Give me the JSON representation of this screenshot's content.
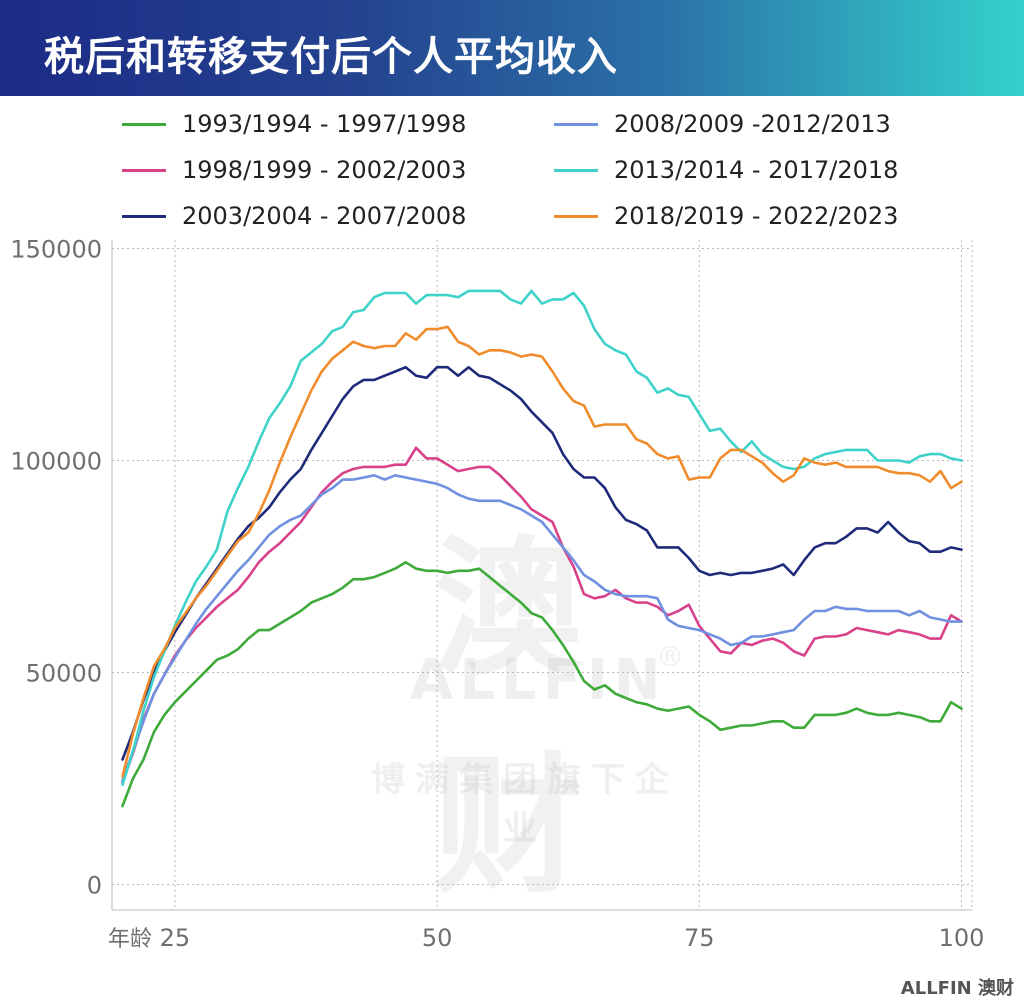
{
  "header": {
    "title": "税后和转移支付后个人平均收入"
  },
  "watermark": {
    "logo": "澳财",
    "brand": "ALLFIN",
    "registered": "®",
    "subtitle": "博满集团旗下企业"
  },
  "footer": {
    "logo": "ALLFIN 澳财"
  },
  "colors": {
    "banner_start": "#1c2b86",
    "banner_end": "#33d2cc",
    "grid": "#b8b8b8",
    "axis_text": "#6f6f6f"
  },
  "chart_data": {
    "type": "line",
    "title": "税后和转移支付后个人平均收入",
    "xlabel": "年龄",
    "ylabel": "",
    "xlim": [
      19,
      101
    ],
    "ylim": [
      -6000,
      152000
    ],
    "xticks": [
      25,
      50,
      75,
      100
    ],
    "yticks": [
      0,
      50000,
      100000,
      150000
    ],
    "x_tick_labels": [
      "25",
      "50",
      "75",
      "100"
    ],
    "y_tick_labels": [
      "0",
      "50000",
      "100000",
      "150000"
    ],
    "grid": true,
    "legend_position": "top",
    "x": [
      20,
      21,
      22,
      23,
      24,
      25,
      26,
      27,
      28,
      29,
      30,
      31,
      32,
      33,
      34,
      35,
      36,
      37,
      38,
      39,
      40,
      41,
      42,
      43,
      44,
      45,
      46,
      47,
      48,
      49,
      50,
      51,
      52,
      53,
      54,
      55,
      56,
      57,
      58,
      59,
      60,
      61,
      62,
      63,
      64,
      65,
      66,
      67,
      68,
      69,
      70,
      71,
      72,
      73,
      74,
      75,
      76,
      77,
      78,
      79,
      80,
      81,
      82,
      83,
      84,
      85,
      86,
      87,
      88,
      89,
      90,
      91,
      92,
      93,
      94,
      95,
      96,
      97,
      98,
      99,
      100
    ],
    "series": [
      {
        "name": "1993/1994 - 1997/1998",
        "color": "#3daa3a",
        "values": [
          18500,
          25000,
          29500,
          36000,
          40000,
          43000,
          45500,
          48000,
          50500,
          53000,
          54000,
          55500,
          58000,
          60000,
          60000,
          61500,
          63000,
          64500,
          66500,
          67500,
          68500,
          70000,
          72000,
          72000,
          72500,
          73500,
          74500,
          76000,
          74500,
          74000,
          74000,
          73500,
          74000,
          74000,
          74500,
          72500,
          70500,
          68500,
          66500,
          64000,
          63000,
          60000,
          56500,
          52500,
          48000,
          46000,
          47000,
          45000,
          44000,
          43000,
          42500,
          41500,
          41000,
          41500,
          42000,
          40000,
          38500,
          36500,
          37000,
          37500,
          37500,
          38000,
          38500,
          38500,
          37000,
          37000,
          40000,
          40000,
          40000,
          40500,
          41500,
          40500,
          40000,
          40000,
          40500,
          40000,
          39500,
          38500,
          38500,
          43000,
          41500
        ]
      },
      {
        "name": "1998/1999 - 2002/2003",
        "color": "#d9428a",
        "values": [
          24000,
          31000,
          39000,
          45000,
          49500,
          54000,
          57500,
          60500,
          63000,
          65500,
          67500,
          69500,
          72500,
          76000,
          78500,
          80500,
          83000,
          85500,
          89000,
          92500,
          95000,
          97000,
          98000,
          98500,
          98500,
          98500,
          99000,
          99000,
          103000,
          100500,
          100500,
          99000,
          97500,
          98000,
          98500,
          98500,
          96500,
          94000,
          91500,
          88500,
          87000,
          85500,
          79500,
          75000,
          68500,
          67500,
          68000,
          69500,
          67500,
          66500,
          66500,
          65500,
          63500,
          64500,
          66000,
          61000,
          58000,
          55000,
          54500,
          57000,
          56500,
          57500,
          58000,
          57000,
          55000,
          54000,
          58000,
          58500,
          58500,
          59000,
          60500,
          60000,
          59500,
          59000,
          60000,
          59500,
          59000,
          58000,
          58000,
          63500,
          62000
        ]
      },
      {
        "name": "2003/2004 - 2007/2008",
        "color": "#202a7a",
        "values": [
          29500,
          36000,
          43500,
          50000,
          55000,
          59500,
          63500,
          67500,
          71000,
          74500,
          78000,
          81500,
          84500,
          86500,
          89000,
          92500,
          95500,
          98000,
          102500,
          106500,
          110500,
          114500,
          117500,
          119000,
          119000,
          120000,
          121000,
          122000,
          120000,
          119500,
          122000,
          122000,
          120000,
          122000,
          120000,
          119500,
          118000,
          116500,
          114500,
          111500,
          109000,
          106500,
          101500,
          98000,
          96000,
          96000,
          93500,
          89000,
          86000,
          85000,
          83500,
          79500,
          79500,
          79500,
          77000,
          74000,
          73000,
          73500,
          73000,
          73500,
          73500,
          74000,
          74500,
          75500,
          73000,
          76500,
          79500,
          80500,
          80500,
          82000,
          84000,
          84000,
          83000,
          85500,
          83000,
          81000,
          80500,
          78500,
          78500,
          79500,
          79000
        ]
      },
      {
        "name": "2008/2009 -2012/2013",
        "color": "#6f91e0",
        "values": [
          24500,
          31500,
          38500,
          45000,
          49500,
          53500,
          57500,
          61500,
          65000,
          68000,
          71000,
          74000,
          76500,
          79500,
          82500,
          84500,
          86000,
          87000,
          89500,
          92000,
          93500,
          95500,
          95500,
          96000,
          96500,
          95500,
          96500,
          96000,
          95500,
          95000,
          94500,
          93500,
          92000,
          91000,
          90500,
          90500,
          90500,
          89500,
          88500,
          87000,
          85500,
          82500,
          79500,
          76500,
          73000,
          71500,
          69500,
          68500,
          68000,
          68000,
          68000,
          67500,
          62500,
          61000,
          60500,
          60000,
          59000,
          58000,
          56500,
          57000,
          58500,
          58500,
          59000,
          59500,
          60000,
          62500,
          64500,
          64500,
          65500,
          65000,
          65000,
          64500,
          64500,
          64500,
          64500,
          63500,
          64500,
          63000,
          62500,
          62000,
          62000
        ]
      },
      {
        "name": "2013/2014 - 2017/2018",
        "color": "#3ed2c8",
        "values": [
          23500,
          31500,
          41000,
          49000,
          55000,
          61000,
          66500,
          71500,
          75000,
          79000,
          88000,
          93500,
          98500,
          104500,
          110000,
          113500,
          117500,
          123500,
          125500,
          127500,
          130500,
          131500,
          135000,
          135500,
          138500,
          139500,
          139500,
          139500,
          137000,
          139000,
          139000,
          139000,
          138500,
          140000,
          140000,
          140000,
          140000,
          138000,
          137000,
          140000,
          137000,
          138000,
          138000,
          139500,
          136500,
          131000,
          127500,
          126000,
          125000,
          121000,
          119500,
          116000,
          117000,
          115500,
          115000,
          111000,
          107000,
          107500,
          104500,
          102000,
          104500,
          101500,
          100000,
          98500,
          98000,
          98500,
          100500,
          101500,
          102000,
          102500,
          102500,
          102500,
          100000,
          100000,
          100000,
          99500,
          101000,
          101500,
          101500,
          100500,
          100000
        ]
      },
      {
        "name": "2018/2019 - 2022/2023",
        "color": "#f08c2c",
        "values": [
          25500,
          35500,
          44000,
          51500,
          55500,
          60500,
          64000,
          67500,
          70500,
          74000,
          77500,
          81000,
          83000,
          87500,
          93000,
          99500,
          105500,
          111000,
          116500,
          121000,
          124000,
          126000,
          128000,
          127000,
          126500,
          127000,
          127000,
          130000,
          128500,
          131000,
          131000,
          131500,
          128000,
          127000,
          125000,
          126000,
          126000,
          125500,
          124500,
          125000,
          124500,
          121000,
          117000,
          114000,
          113000,
          108000,
          108500,
          108500,
          108500,
          105000,
          104000,
          101500,
          100500,
          101000,
          95500,
          96000,
          96000,
          100500,
          102500,
          102500,
          101000,
          99500,
          97000,
          95000,
          96500,
          100500,
          99500,
          99000,
          99500,
          98500,
          98500,
          98500,
          98500,
          97500,
          97000,
          97000,
          96500,
          95000,
          97500,
          93500,
          95000
        ]
      }
    ]
  }
}
